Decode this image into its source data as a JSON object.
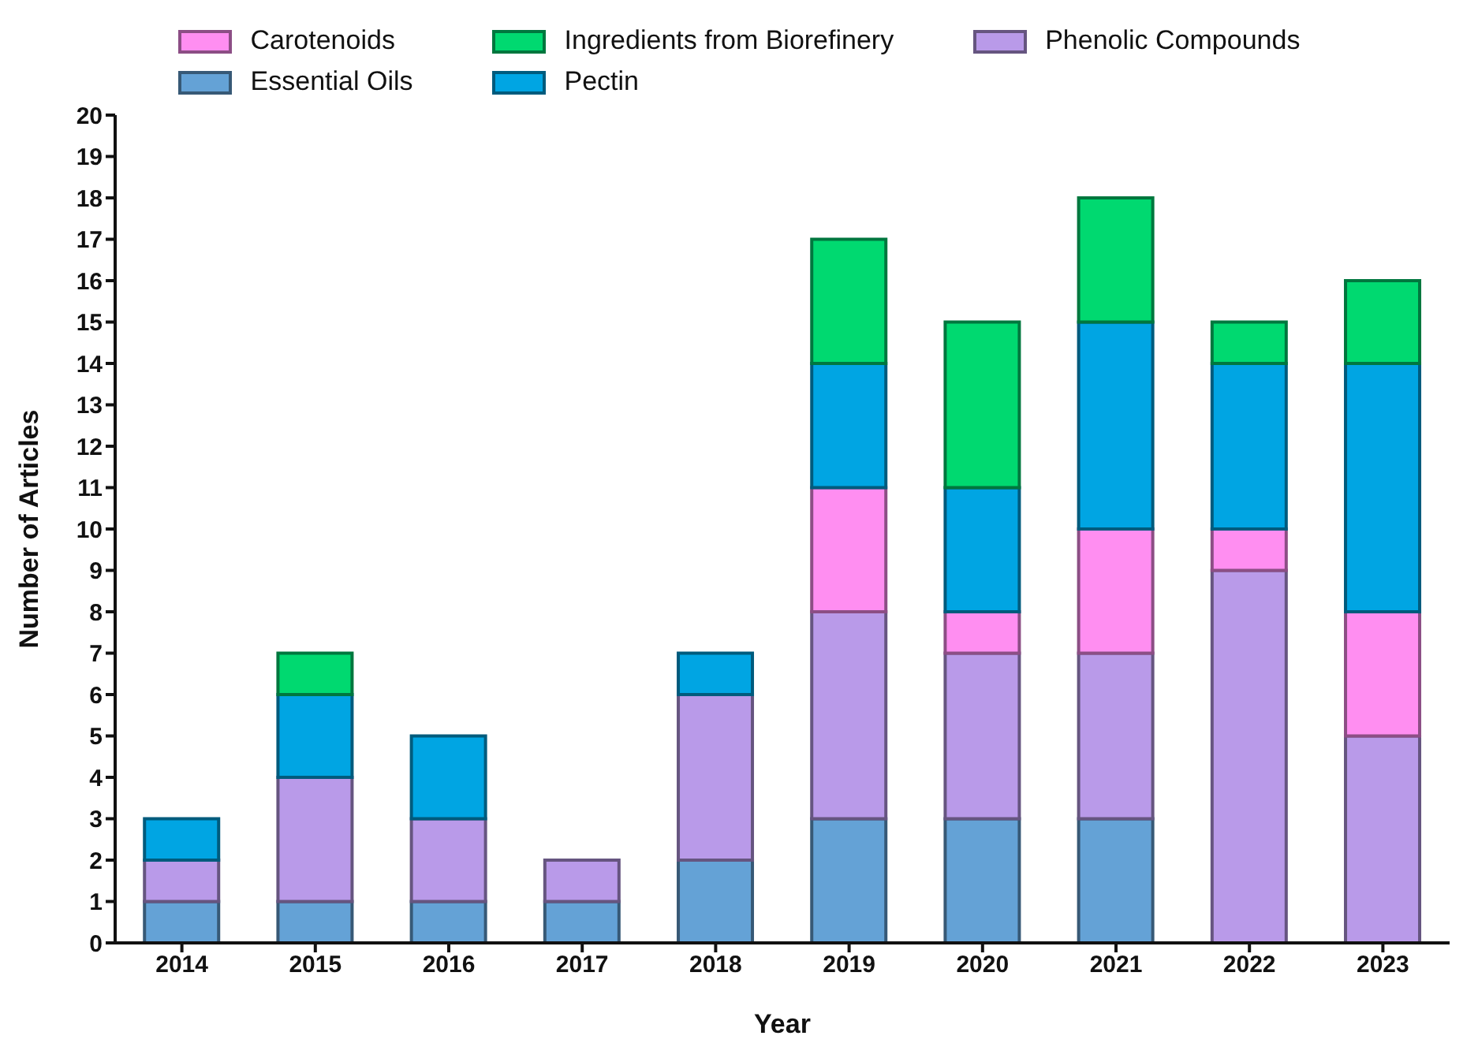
{
  "chart_data": {
    "type": "bar",
    "stacked": true,
    "xlabel": "Year",
    "ylabel": "Number of Articles",
    "categories": [
      "2014",
      "2015",
      "2016",
      "2017",
      "2018",
      "2019",
      "2020",
      "2021",
      "2022",
      "2023"
    ],
    "ylim": [
      0,
      20
    ],
    "yticks": [
      0,
      1,
      2,
      3,
      4,
      5,
      6,
      7,
      8,
      9,
      10,
      11,
      12,
      13,
      14,
      15,
      16,
      17,
      18,
      19,
      20
    ],
    "grid": false,
    "legend": "top",
    "series": [
      {
        "name": "Essential Oils",
        "color": "#64a2d6",
        "values": [
          1,
          1,
          1,
          1,
          2,
          3,
          3,
          3,
          0,
          0
        ]
      },
      {
        "name": "Phenolic Compounds",
        "color": "#b99ae9",
        "values": [
          1,
          3,
          2,
          1,
          4,
          5,
          4,
          4,
          9,
          5
        ]
      },
      {
        "name": "Carotenoids",
        "color": "#ff8ef1",
        "values": [
          0,
          0,
          0,
          0,
          0,
          3,
          1,
          3,
          1,
          3
        ]
      },
      {
        "name": "Pectin",
        "color": "#00a5e3",
        "values": [
          1,
          2,
          2,
          0,
          1,
          3,
          3,
          5,
          4,
          6
        ]
      },
      {
        "name": "Ingredients from Biorefinery",
        "color": "#00d970",
        "values": [
          0,
          1,
          0,
          0,
          0,
          3,
          4,
          3,
          1,
          2
        ]
      }
    ]
  }
}
